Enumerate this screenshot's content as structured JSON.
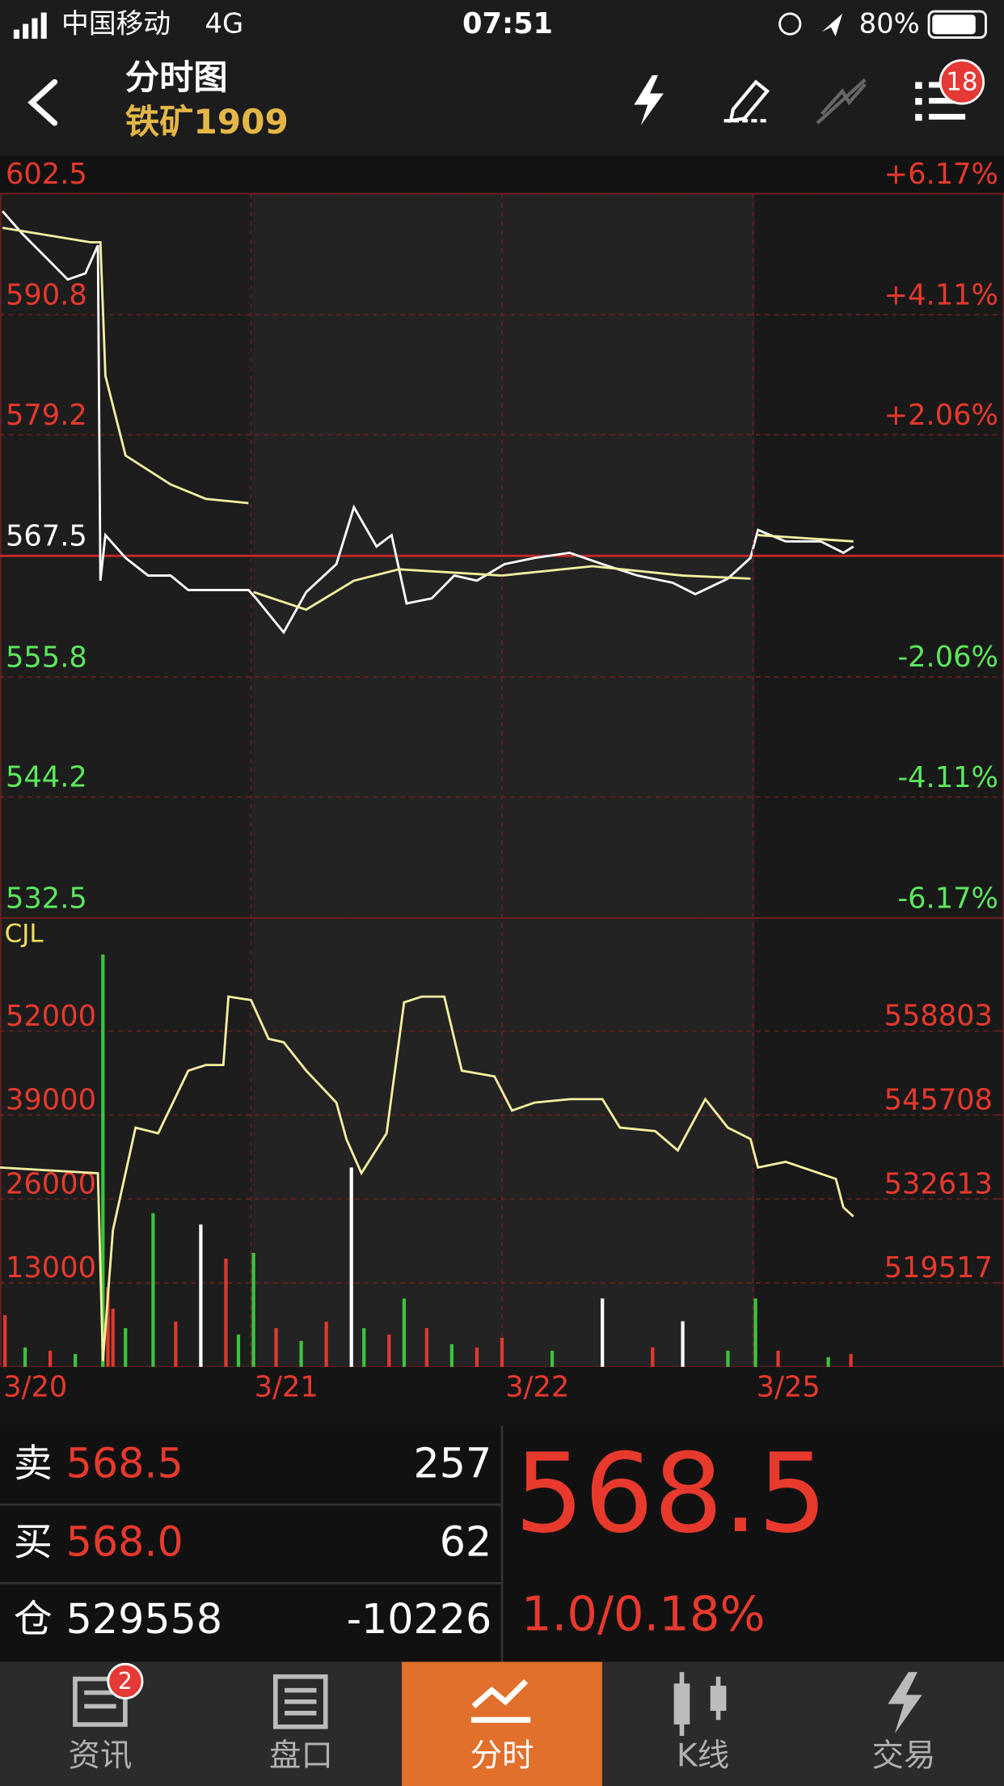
{
  "status_bar": {
    "carrier": "中国移动",
    "network": "4G",
    "time": "07:51",
    "battery": "80%"
  },
  "header": {
    "title": "分时图",
    "subtitle": "铁矿1909",
    "badge": "18"
  },
  "chart_data": [
    {
      "type": "line",
      "xlim": [
        0,
        4
      ],
      "ylim": [
        532.5,
        602.5
      ],
      "yticks": [
        602.5,
        590.8,
        579.2,
        567.5,
        555.8,
        544.2,
        532.5
      ],
      "y2lim": [
        -6.17,
        6.17
      ],
      "y2ticks": [
        {
          "value": 6.17,
          "label": "+6.17%"
        },
        {
          "value": 4.11,
          "label": "+4.11%"
        },
        {
          "value": 2.06,
          "label": "+2.06%"
        },
        {
          "value": -2.06,
          "label": "-2.06%"
        },
        {
          "value": -4.11,
          "label": "-4.11%"
        },
        {
          "value": -6.17,
          "label": "-6.17%"
        }
      ],
      "reference_line": 567.5,
      "grid": true,
      "series": [
        {
          "color": "#ffffff",
          "x": [
            0.01,
            0.09,
            0.18,
            0.27,
            0.34,
            0.39,
            0.4,
            0.42,
            0.5,
            0.59,
            0.68,
            0.75,
            0.99,
            1.02,
            1.13,
            1.22,
            1.34,
            1.41,
            1.5,
            1.56,
            1.62,
            1.72,
            1.81,
            1.9,
            2.01,
            2.13,
            2.27,
            2.4,
            2.54,
            2.68,
            2.77,
            2.9,
            2.99,
            3.02,
            3.13,
            3.27,
            3.36,
            3.4
          ],
          "values": [
            600.8,
            598.6,
            596.4,
            594.2,
            594.8,
            597.5,
            565.1,
            569.5,
            567.3,
            565.6,
            565.6,
            564.2,
            564.2,
            563.4,
            560.1,
            564.0,
            566.7,
            572.2,
            568.4,
            569.5,
            562.9,
            563.4,
            565.6,
            565.1,
            566.7,
            567.3,
            567.8,
            566.7,
            565.6,
            564.9,
            563.8,
            565.3,
            567.3,
            570.0,
            568.9,
            568.9,
            567.8,
            568.4
          ]
        },
        {
          "color": "#f3f0a0",
          "x": [
            0.01,
            0.36,
            0.4,
            0.42,
            0.5,
            0.68,
            0.82,
            0.99,
            1.0,
            1.01,
            1.22,
            1.41,
            1.59,
            2.0,
            2.36,
            2.72,
            2.99,
            3.0,
            3.02,
            3.4
          ],
          "values": [
            599.2,
            597.8,
            597.8,
            584.9,
            577.2,
            574.4,
            573.0,
            572.6,
            null,
            564.0,
            562.3,
            565.1,
            566.2,
            565.6,
            566.5,
            565.6,
            565.3,
            null,
            569.5,
            568.9
          ]
        }
      ]
    },
    {
      "type": "volume",
      "title": "CJL",
      "xlim": [
        0,
        4
      ],
      "xticks": [
        {
          "value": 0,
          "label": "3/20"
        },
        {
          "value": 1,
          "label": "3/21"
        },
        {
          "value": 2,
          "label": "3/22"
        },
        {
          "value": 3,
          "label": "3/25"
        }
      ],
      "ylim": [
        0,
        68800
      ],
      "yticks": [
        52000,
        39000,
        26000,
        13000
      ],
      "y2lim": [
        506422,
        575700
      ],
      "y2ticks": [
        558803,
        545708,
        532613,
        519517
      ],
      "grid": true,
      "bars": {
        "x": [
          0.02,
          0.1,
          0.2,
          0.3,
          0.41,
          0.43,
          0.45,
          0.5,
          0.61,
          0.7,
          0.8,
          0.9,
          0.95,
          1.01,
          1.1,
          1.2,
          1.3,
          1.4,
          1.45,
          1.55,
          1.61,
          1.7,
          1.8,
          1.9,
          2.0,
          2.2,
          2.4,
          2.6,
          2.72,
          2.9,
          3.01,
          3.1,
          3.3,
          3.39
        ],
        "values": [
          8000,
          3000,
          2500,
          2000,
          63860,
          12350,
          9000,
          6000,
          23800,
          7000,
          22050,
          16760,
          5000,
          17640,
          6000,
          4000,
          7000,
          30870,
          6000,
          5000,
          10580,
          6000,
          3500,
          3000,
          4500,
          2500,
          10580,
          3000,
          7060,
          2500,
          10580,
          2500,
          1500,
          2000
        ],
        "colors": [
          "#e03a2e",
          "#3cc43c",
          "#e03a2e",
          "#3cc43c",
          "#3cc43c",
          "#e03a2e",
          "#e03a2e",
          "#3cc43c",
          "#3cc43c",
          "#e03a2e",
          "#ffffff",
          "#e03a2e",
          "#3cc43c",
          "#3cc43c",
          "#e03a2e",
          "#3cc43c",
          "#e03a2e",
          "#ffffff",
          "#3cc43c",
          "#e03a2e",
          "#3cc43c",
          "#e03a2e",
          "#3cc43c",
          "#e03a2e",
          "#e03a2e",
          "#3cc43c",
          "#ffffff",
          "#e03a2e",
          "#ffffff",
          "#3cc43c",
          "#3cc43c",
          "#e03a2e",
          "#3cc43c",
          "#e03a2e"
        ]
      },
      "series": [
        {
          "axis": "y2",
          "color": "#f6f0a0",
          "x": [
            0,
            0.39,
            0.41,
            0.45,
            0.54,
            0.63,
            0.75,
            0.82,
            0.89,
            0.91,
            1.0,
            1.07,
            1.13,
            1.22,
            1.34,
            1.38,
            1.44,
            1.54,
            1.61,
            1.68,
            1.77,
            1.84,
            1.97,
            2.04,
            2.13,
            2.27,
            2.4,
            2.47,
            2.61,
            2.7,
            2.81,
            2.9,
            2.99,
            3.02,
            3.13,
            3.33,
            3.36,
            3.4
          ],
          "values": [
            537508,
            536620,
            507310,
            527738,
            543725,
            542837,
            552607,
            553495,
            553495,
            564153,
            563620,
            557581,
            557048,
            552607,
            547633,
            541949,
            536620,
            542837,
            563265,
            564153,
            564153,
            552607,
            551719,
            546390,
            547633,
            548166,
            548166,
            543725,
            543192,
            540173,
            548166,
            543725,
            541949,
            537508,
            538396,
            535732,
            531291,
            529870
          ]
        }
      ]
    }
  ],
  "quote": {
    "rows": [
      {
        "label": "卖",
        "price": "568.5",
        "qty": "257"
      },
      {
        "label": "买",
        "price": "568.0",
        "qty": "62"
      },
      {
        "label": "仓",
        "price": "529558",
        "qty": "-10226"
      }
    ],
    "last": "568.5",
    "change": "1.0/0.18%"
  },
  "tabs": [
    {
      "label": "资讯",
      "badge": "2"
    },
    {
      "label": "盘口"
    },
    {
      "label": "分时"
    },
    {
      "label": "K线"
    },
    {
      "label": "交易"
    }
  ]
}
